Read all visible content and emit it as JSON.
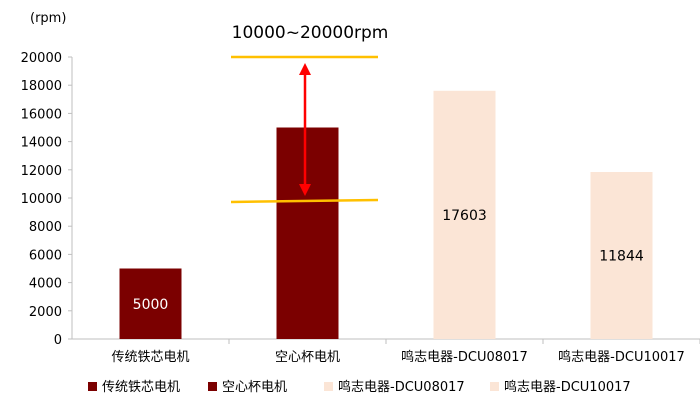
{
  "chart_data": {
    "type": "bar",
    "unit": "(rpm)",
    "categories": [
      "传统铁芯电机",
      "空心杯电机",
      "鸣志电器-DCU08017",
      "鸣志电器-DCU10017"
    ],
    "values": [
      5000,
      15000,
      17603,
      11844
    ],
    "data_labels": [
      "5000",
      "",
      "17603",
      "11844"
    ],
    "colors": [
      "#7b0000",
      "#7b0000",
      "#fbe5d6",
      "#fbe5d6"
    ],
    "ylim": [
      0,
      20000
    ],
    "yticks": [
      0,
      2000,
      4000,
      6000,
      8000,
      10000,
      12000,
      14000,
      16000,
      18000,
      20000
    ],
    "grid": false,
    "legend": {
      "position": "bottom",
      "entries": [
        {
          "label": "传统铁芯电机",
          "color": "#7b0000"
        },
        {
          "label": "空心杯电机",
          "color": "#7b0000"
        },
        {
          "label": "鸣志电器-DCU08017",
          "color": "#fbe5d6"
        },
        {
          "label": "鸣志电器-DCU10017",
          "color": "#fbe5d6"
        }
      ]
    },
    "annotation": {
      "text": "10000~20000rpm",
      "range": [
        10000,
        20000
      ],
      "line_color": "#ffc000",
      "arrow_color": "#ff0000"
    }
  }
}
